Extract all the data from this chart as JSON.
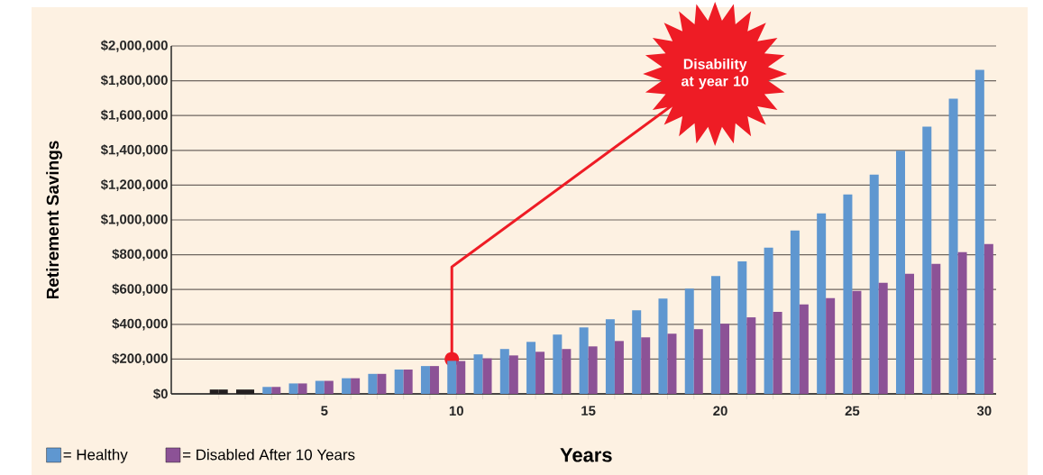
{
  "chart_data": {
    "type": "bar",
    "xlabel": "Years",
    "ylabel": "Retirement Savings",
    "categories": [
      null,
      null,
      null,
      null,
      "5",
      null,
      null,
      null,
      null,
      "10",
      null,
      null,
      null,
      null,
      "15",
      null,
      null,
      null,
      null,
      "20",
      null,
      null,
      null,
      null,
      "25",
      null,
      null,
      null,
      null,
      "30"
    ],
    "series": [
      {
        "name": "= Healthy",
        "color": "#5f97d0",
        "colors": [
          "#231f20",
          "#231f20",
          "#5f97d0",
          "#5f97d0",
          "#5f97d0",
          "#5f97d0",
          "#5f97d0",
          "#5f97d0",
          "#5f97d0",
          "#5f97d0",
          "#5f97d0",
          "#5f97d0",
          "#5f97d0",
          "#5f97d0",
          "#5f97d0",
          "#5f97d0",
          "#5f97d0",
          "#5f97d0",
          "#5f97d0",
          "#5f97d0",
          "#5f97d0",
          "#5f97d0",
          "#5f97d0",
          "#5f97d0",
          "#5f97d0",
          "#5f97d0",
          "#5f97d0",
          "#5f97d0",
          "#5f97d0",
          "#5f97d0"
        ],
        "values": [
          25000,
          25000,
          40000,
          60000,
          75000,
          90000,
          115000,
          140000,
          160000,
          190000,
          227000,
          258000,
          299000,
          341000,
          382000,
          429000,
          481000,
          548000,
          605000,
          678000,
          762000,
          841000,
          939000,
          1038000,
          1147000,
          1261000,
          1398000,
          1536000,
          1697000,
          1863000
        ]
      },
      {
        "name": "= Disabled After 10 Years",
        "color": "#8c5296",
        "colors": [
          "#231f20",
          "#231f20",
          "#8c5296",
          "#8c5296",
          "#8c5296",
          "#8c5296",
          "#8c5296",
          "#8c5296",
          "#8c5296",
          "#8c5296",
          "#8c5296",
          "#8c5296",
          "#8c5296",
          "#8c5296",
          "#8c5296",
          "#8c5296",
          "#8c5296",
          "#8c5296",
          "#8c5296",
          "#8c5296",
          "#8c5296",
          "#8c5296",
          "#8c5296",
          "#8c5296",
          "#8c5296",
          "#8c5296",
          "#8c5296",
          "#8c5296",
          "#8c5296",
          "#8c5296"
        ],
        "values": [
          25000,
          25000,
          40000,
          60000,
          75000,
          90000,
          115000,
          140000,
          160000,
          189000,
          204000,
          221000,
          242000,
          258000,
          273000,
          304000,
          325000,
          346000,
          372000,
          403000,
          440000,
          472000,
          514000,
          550000,
          592000,
          638000,
          690000,
          747000,
          815000,
          862000
        ]
      }
    ],
    "ylim": [
      0,
      2000000
    ],
    "yticks": [
      {
        "value": 0,
        "label": "$0"
      },
      {
        "value": 200000,
        "label": "$200,000"
      },
      {
        "value": 400000,
        "label": "$400,000"
      },
      {
        "value": 600000,
        "label": "$600,000"
      },
      {
        "value": 800000,
        "label": "$800,000"
      },
      {
        "value": 1000000,
        "label": "$1,000,000"
      },
      {
        "value": 1200000,
        "label": "$1,200,000"
      },
      {
        "value": 1400000,
        "label": "$1,400,000"
      },
      {
        "value": 1600000,
        "label": "$1,600,000"
      },
      {
        "value": 1800000,
        "label": "$1,800,000"
      },
      {
        "value": 2000000,
        "label": "$2,000,000"
      }
    ],
    "annotations": [
      {
        "text": "Disability at year 10",
        "x": "10",
        "y": 200000
      }
    ],
    "grid": "y",
    "legend": "bottom left"
  }
}
